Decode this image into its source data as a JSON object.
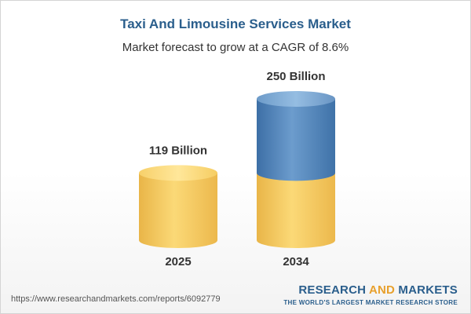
{
  "title": "Taxi And Limousine Services Market",
  "subtitle": "Market forecast to grow at a CAGR of 8.6%",
  "chart_data": {
    "type": "bar",
    "categories": [
      "2025",
      "2034"
    ],
    "values": [
      119,
      250
    ],
    "value_labels": [
      "119 Billion",
      "250 Billion"
    ],
    "series_colors": {
      "base": "#f5c95e",
      "growth": "#4a7fb5"
    },
    "legend": false,
    "grid": false
  },
  "footer": {
    "url": "https://www.researchandmarkets.com/reports/6092779",
    "brand_part1": "RESEARCH ",
    "brand_part2": "AND",
    "brand_part3": " MARKETS",
    "tagline": "THE WORLD'S LARGEST MARKET RESEARCH STORE"
  }
}
